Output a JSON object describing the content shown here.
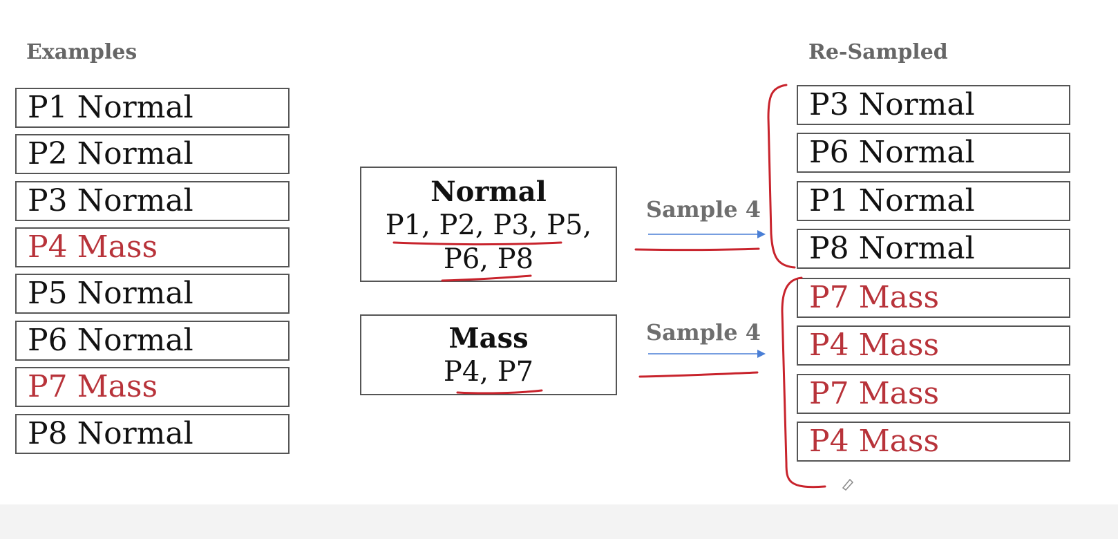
{
  "examples": {
    "heading": "Examples",
    "items": [
      {
        "id": "P1",
        "label": "Normal"
      },
      {
        "id": "P2",
        "label": "Normal"
      },
      {
        "id": "P3",
        "label": "Normal"
      },
      {
        "id": "P4",
        "label": "Mass"
      },
      {
        "id": "P5",
        "label": "Normal"
      },
      {
        "id": "P6",
        "label": "Normal"
      },
      {
        "id": "P7",
        "label": "Mass"
      },
      {
        "id": "P8",
        "label": "Normal"
      }
    ]
  },
  "groups": {
    "normal": {
      "title": "Normal",
      "line1": "P1, P2, P3, P5,",
      "line2": "P6, P8"
    },
    "mass": {
      "title": "Mass",
      "line1": "P4, P7"
    }
  },
  "sampling": {
    "normal_label": "Sample 4",
    "mass_label": "Sample 4"
  },
  "resampled": {
    "heading": "Re-Sampled",
    "items": [
      {
        "id": "P3",
        "label": "Normal"
      },
      {
        "id": "P6",
        "label": "Normal"
      },
      {
        "id": "P1",
        "label": "Normal"
      },
      {
        "id": "P8",
        "label": "Normal"
      },
      {
        "id": "P7",
        "label": "Mass"
      },
      {
        "id": "P4",
        "label": "Mass"
      },
      {
        "id": "P7",
        "label": "Mass"
      },
      {
        "id": "P4",
        "label": "Mass"
      }
    ]
  },
  "colors": {
    "normal_text": "#111111",
    "mass_text": "#b8333a",
    "heading_text": "#666666",
    "arrow": "#4a7fd6",
    "annotation_ink": "#c8232c"
  }
}
